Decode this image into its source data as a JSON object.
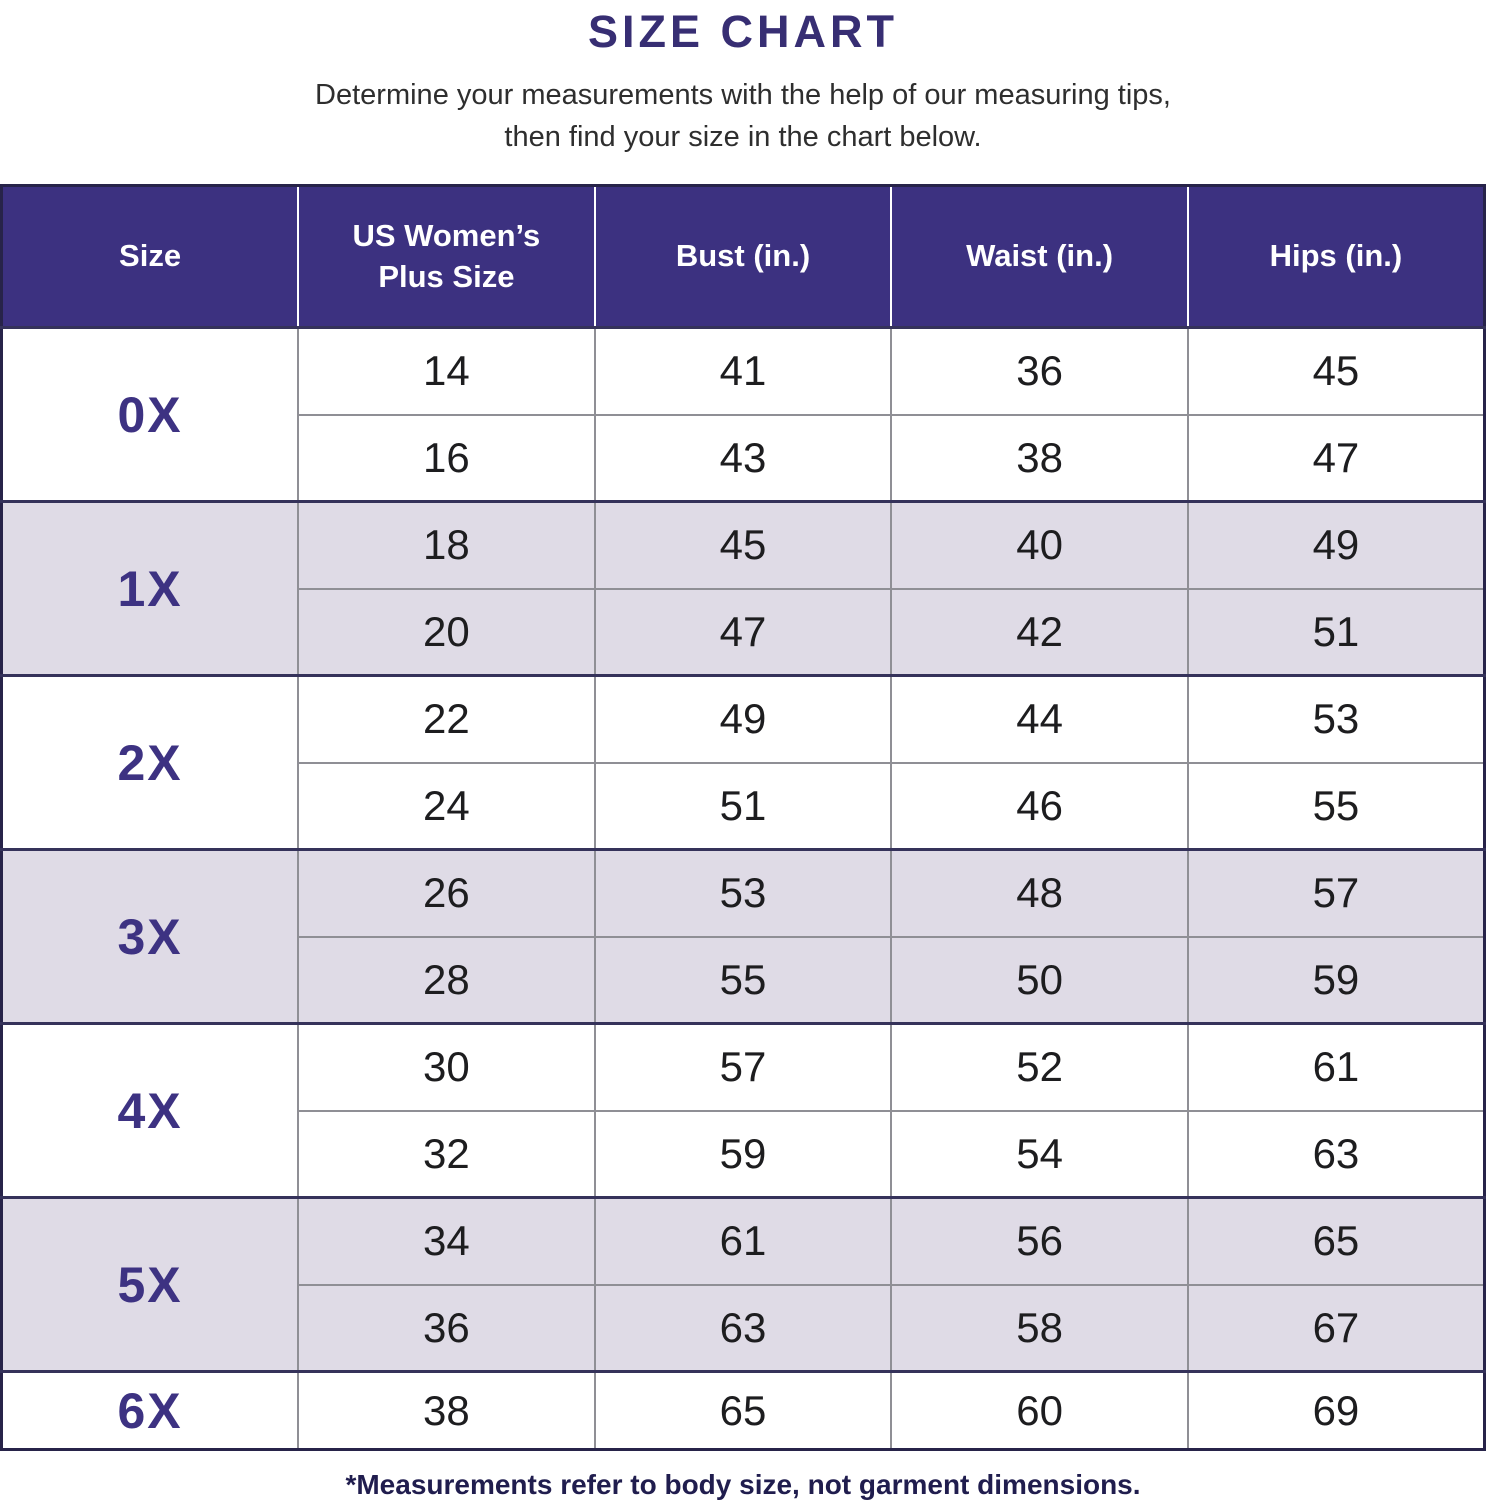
{
  "title": "SIZE CHART",
  "subtitle_line1": "Determine your measurements with the help of our measuring tips,",
  "subtitle_line2": "then find your size in the chart below.",
  "footnote": "*Measurements refer to body size, not garment dimensions.",
  "colors": {
    "header_background": "#3c3180",
    "header_text": "#ffffff",
    "title_text": "#372e73",
    "size_label_text": "#3d3282",
    "alt_row_background": "#dfdbe6",
    "body_text": "#1d1d1f",
    "footnote_text": "#201d4e",
    "group_divider": "#35325a",
    "sub_divider": "#8f8f95"
  },
  "chart_data": {
    "type": "table",
    "title": "SIZE CHART",
    "columns": [
      "Size",
      "US Women’s Plus Size",
      "Bust (in.)",
      "Waist (in.)",
      "Hips (in.)"
    ],
    "groups": [
      {
        "size": "0X",
        "rows": [
          [
            14,
            41,
            36,
            45
          ],
          [
            16,
            43,
            38,
            47
          ]
        ]
      },
      {
        "size": "1X",
        "rows": [
          [
            18,
            45,
            40,
            49
          ],
          [
            20,
            47,
            42,
            51
          ]
        ]
      },
      {
        "size": "2X",
        "rows": [
          [
            22,
            49,
            44,
            53
          ],
          [
            24,
            51,
            46,
            55
          ]
        ]
      },
      {
        "size": "3X",
        "rows": [
          [
            26,
            53,
            48,
            57
          ],
          [
            28,
            55,
            50,
            59
          ]
        ]
      },
      {
        "size": "4X",
        "rows": [
          [
            30,
            57,
            52,
            61
          ],
          [
            32,
            59,
            54,
            63
          ]
        ]
      },
      {
        "size": "5X",
        "rows": [
          [
            34,
            61,
            56,
            65
          ],
          [
            36,
            63,
            58,
            67
          ]
        ]
      },
      {
        "size": "6X",
        "rows": [
          [
            38,
            65,
            60,
            69
          ]
        ]
      }
    ]
  }
}
